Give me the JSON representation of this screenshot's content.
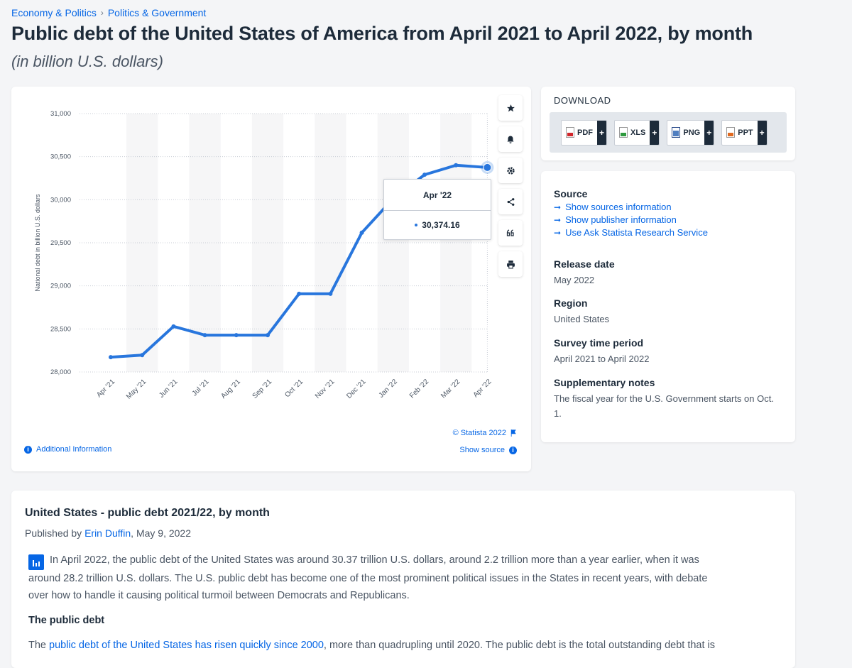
{
  "breadcrumb": [
    {
      "label": "Economy & Politics"
    },
    {
      "label": "Politics & Government"
    }
  ],
  "breadcrumb_sep": "›",
  "title": "Public debt of the United States of America from April 2021 to April 2022, by month",
  "subtitle": "(in billion U.S. dollars)",
  "tooltip": {
    "label": "Apr '22",
    "value": "30,374.16"
  },
  "chart_footer": {
    "copyright": "© Statista 2022",
    "show_source": "Show source",
    "additional_info": "Additional Information"
  },
  "toolbar": {
    "icons": [
      "star-icon",
      "bell-icon",
      "gear-icon",
      "share-icon",
      "quote-icon",
      "print-icon"
    ]
  },
  "download": {
    "title": "DOWNLOAD",
    "buttons": [
      {
        "label": "PDF",
        "icon": "pdf-file-icon"
      },
      {
        "label": "XLS",
        "icon": "xls-file-icon"
      },
      {
        "label": "PNG",
        "icon": "png-file-icon"
      },
      {
        "label": "PPT",
        "icon": "ppt-file-icon"
      }
    ],
    "plus": "+"
  },
  "meta": {
    "source_head": "Source",
    "links": [
      "Show sources information",
      "Show publisher information",
      "Use Ask Statista Research Service"
    ],
    "release_head": "Release date",
    "release_val": "May 2022",
    "region_head": "Region",
    "region_val": "United States",
    "period_head": "Survey time period",
    "period_val": "April 2021 to April 2022",
    "notes_head": "Supplementary notes",
    "notes_val": "The fiscal year for the U.S. Government starts on Oct. 1."
  },
  "article": {
    "title": "United States - public debt 2021/22, by month",
    "published_prefix": "Published by ",
    "author": "Erin Duffin",
    "published_suffix": ", May 9, 2022",
    "para1": "In April 2022, the public debt of the United States was around 30.37 trillion U.S. dollars, around 2.2 trillion more than a year earlier, when it was around 28.2 trillion U.S. dollars. The U.S. public debt has become one of the most prominent political issues in the States in recent years, with debate over how to handle it causing political turmoil between Democrats and Republicans.",
    "subhead": "The public debt",
    "para2_prefix": "The ",
    "para2_link": "public debt of the United States has risen quickly since 2000",
    "para2_suffix": ", more than quadrupling until 2020. The public debt is the total outstanding debt that is"
  },
  "chart_data": {
    "type": "line",
    "title": "",
    "xlabel": "",
    "ylabel": "National debt in billion U.S. dollars",
    "categories": [
      "Apr '21",
      "May '21",
      "Jun '21",
      "Jul '21",
      "Aug '21",
      "Sep '21",
      "Oct '21",
      "Nov '21",
      "Dec '21",
      "Jan '22",
      "Feb '22",
      "Mar '22",
      "Apr '22"
    ],
    "series": [
      {
        "values": [
          28172,
          28196,
          28529,
          28428,
          28428,
          28428,
          28908,
          28908,
          29617,
          30013,
          30290,
          30400,
          30374.16
        ]
      }
    ],
    "yticks": [
      28000,
      28500,
      29000,
      29500,
      30000,
      30500,
      31000
    ],
    "ytick_labels": [
      "28,000",
      "28,500",
      "29,000",
      "29,500",
      "30,000",
      "30,500",
      "31,000"
    ],
    "ylim": [
      28000,
      31000
    ],
    "highlight_index": 12,
    "line_color": "#2876dd",
    "grid": true,
    "legend": "none"
  }
}
